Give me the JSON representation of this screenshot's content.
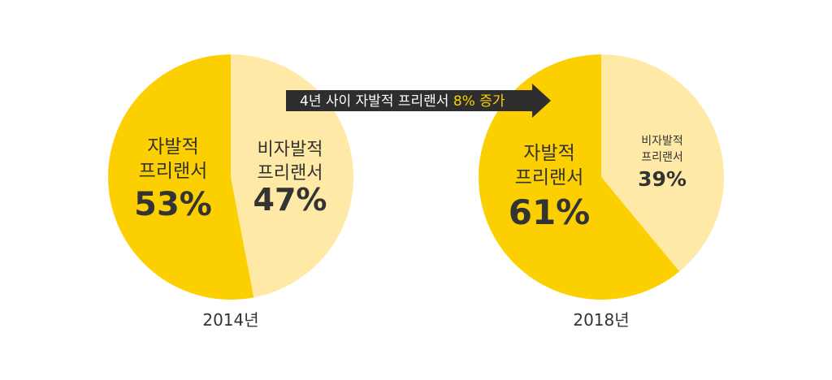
{
  "colors": {
    "major": "#FCD000",
    "minor": "#FFE9A6",
    "text": "#333333",
    "arrow_bg": "#2E2E2E",
    "arrow_text": "#FFFFFF",
    "arrow_highlight": "#FCD000"
  },
  "arrow": {
    "text_before": "4년 사이 자발적 프리랜서 ",
    "text_highlight": "8% 증가"
  },
  "chart_data": [
    {
      "type": "pie",
      "caption": "2014년",
      "slices": [
        {
          "label_line1": "자발적",
          "label_line2": "프리랜서",
          "value": 53,
          "value_label": "53%",
          "color": "#FCD000"
        },
        {
          "label_line1": "비자발적",
          "label_line2": "프리랜서",
          "value": 47,
          "value_label": "47%",
          "color": "#FFE9A6"
        }
      ]
    },
    {
      "type": "pie",
      "caption": "2018년",
      "slices": [
        {
          "label_line1": "자발적",
          "label_line2": "프리랜서",
          "value": 61,
          "value_label": "61%",
          "color": "#FCD000"
        },
        {
          "label_line1": "비자발적",
          "label_line2": "프리랜서",
          "value": 39,
          "value_label": "39%",
          "color": "#FFE9A6"
        }
      ]
    }
  ]
}
